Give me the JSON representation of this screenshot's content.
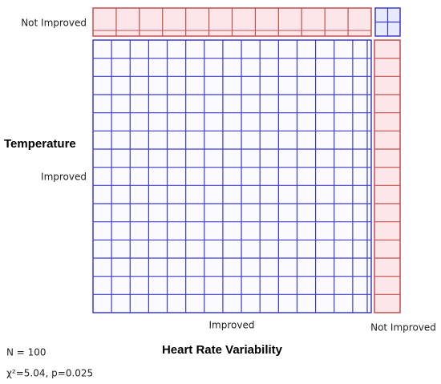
{
  "y_axis": {
    "title": "Temperature",
    "labels": [
      "Not Improved",
      "Improved"
    ]
  },
  "x_axis": {
    "title": "Heart Rate Variability",
    "labels": [
      "Improved",
      "Not Improved"
    ]
  },
  "stats": {
    "n": "N = 100",
    "test": "χ²=5.04, p=0.025"
  }
}
